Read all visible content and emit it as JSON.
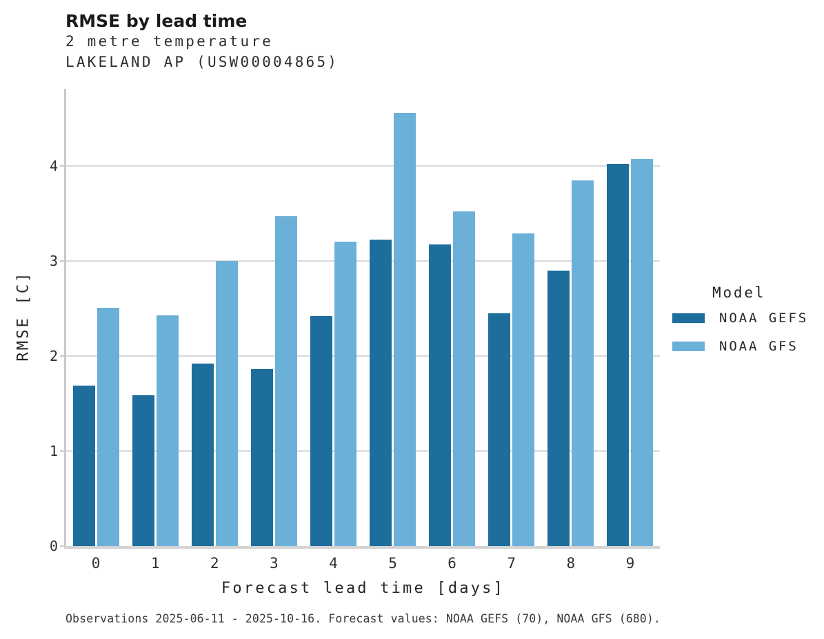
{
  "header": {
    "title": "RMSE by lead time",
    "subtitle_variable": "2 metre temperature",
    "subtitle_station": "LAKELAND AP (USW00004865)"
  },
  "chart_data": {
    "type": "bar",
    "title": "RMSE by lead time",
    "subtitle": "2 metre temperature",
    "station": "LAKELAND AP (USW00004865)",
    "categories": [
      "0",
      "1",
      "2",
      "3",
      "4",
      "5",
      "6",
      "7",
      "8",
      "9"
    ],
    "series": [
      {
        "name": "NOAA GEFS",
        "color": "#1d6e9c",
        "values": [
          1.69,
          1.59,
          1.92,
          1.86,
          2.42,
          3.22,
          3.17,
          2.45,
          2.9,
          4.02
        ]
      },
      {
        "name": "NOAA GFS",
        "color": "#6bb0d8",
        "values": [
          2.51,
          2.43,
          3.0,
          3.47,
          3.2,
          4.56,
          3.52,
          3.29,
          3.85,
          4.07
        ]
      }
    ],
    "xlabel": "Forecast lead time [days]",
    "ylabel": "RMSE [C]",
    "ylim": [
      0,
      4.81
    ],
    "yticks": [
      0,
      1,
      2,
      3,
      4
    ],
    "grid": "horizontal",
    "legend_title": "Model",
    "legend_position": "right"
  },
  "legend": {
    "title": "Model"
  },
  "colors": {
    "gridline": "#d9d9d9",
    "axis_spine": "#c9c9c9",
    "baseline": "#d4d4d4",
    "background": "#ffffff"
  },
  "caption": "Observations 2025-06-11 - 2025-10-16. Forecast values: NOAA GEFS (70), NOAA GFS (680)."
}
